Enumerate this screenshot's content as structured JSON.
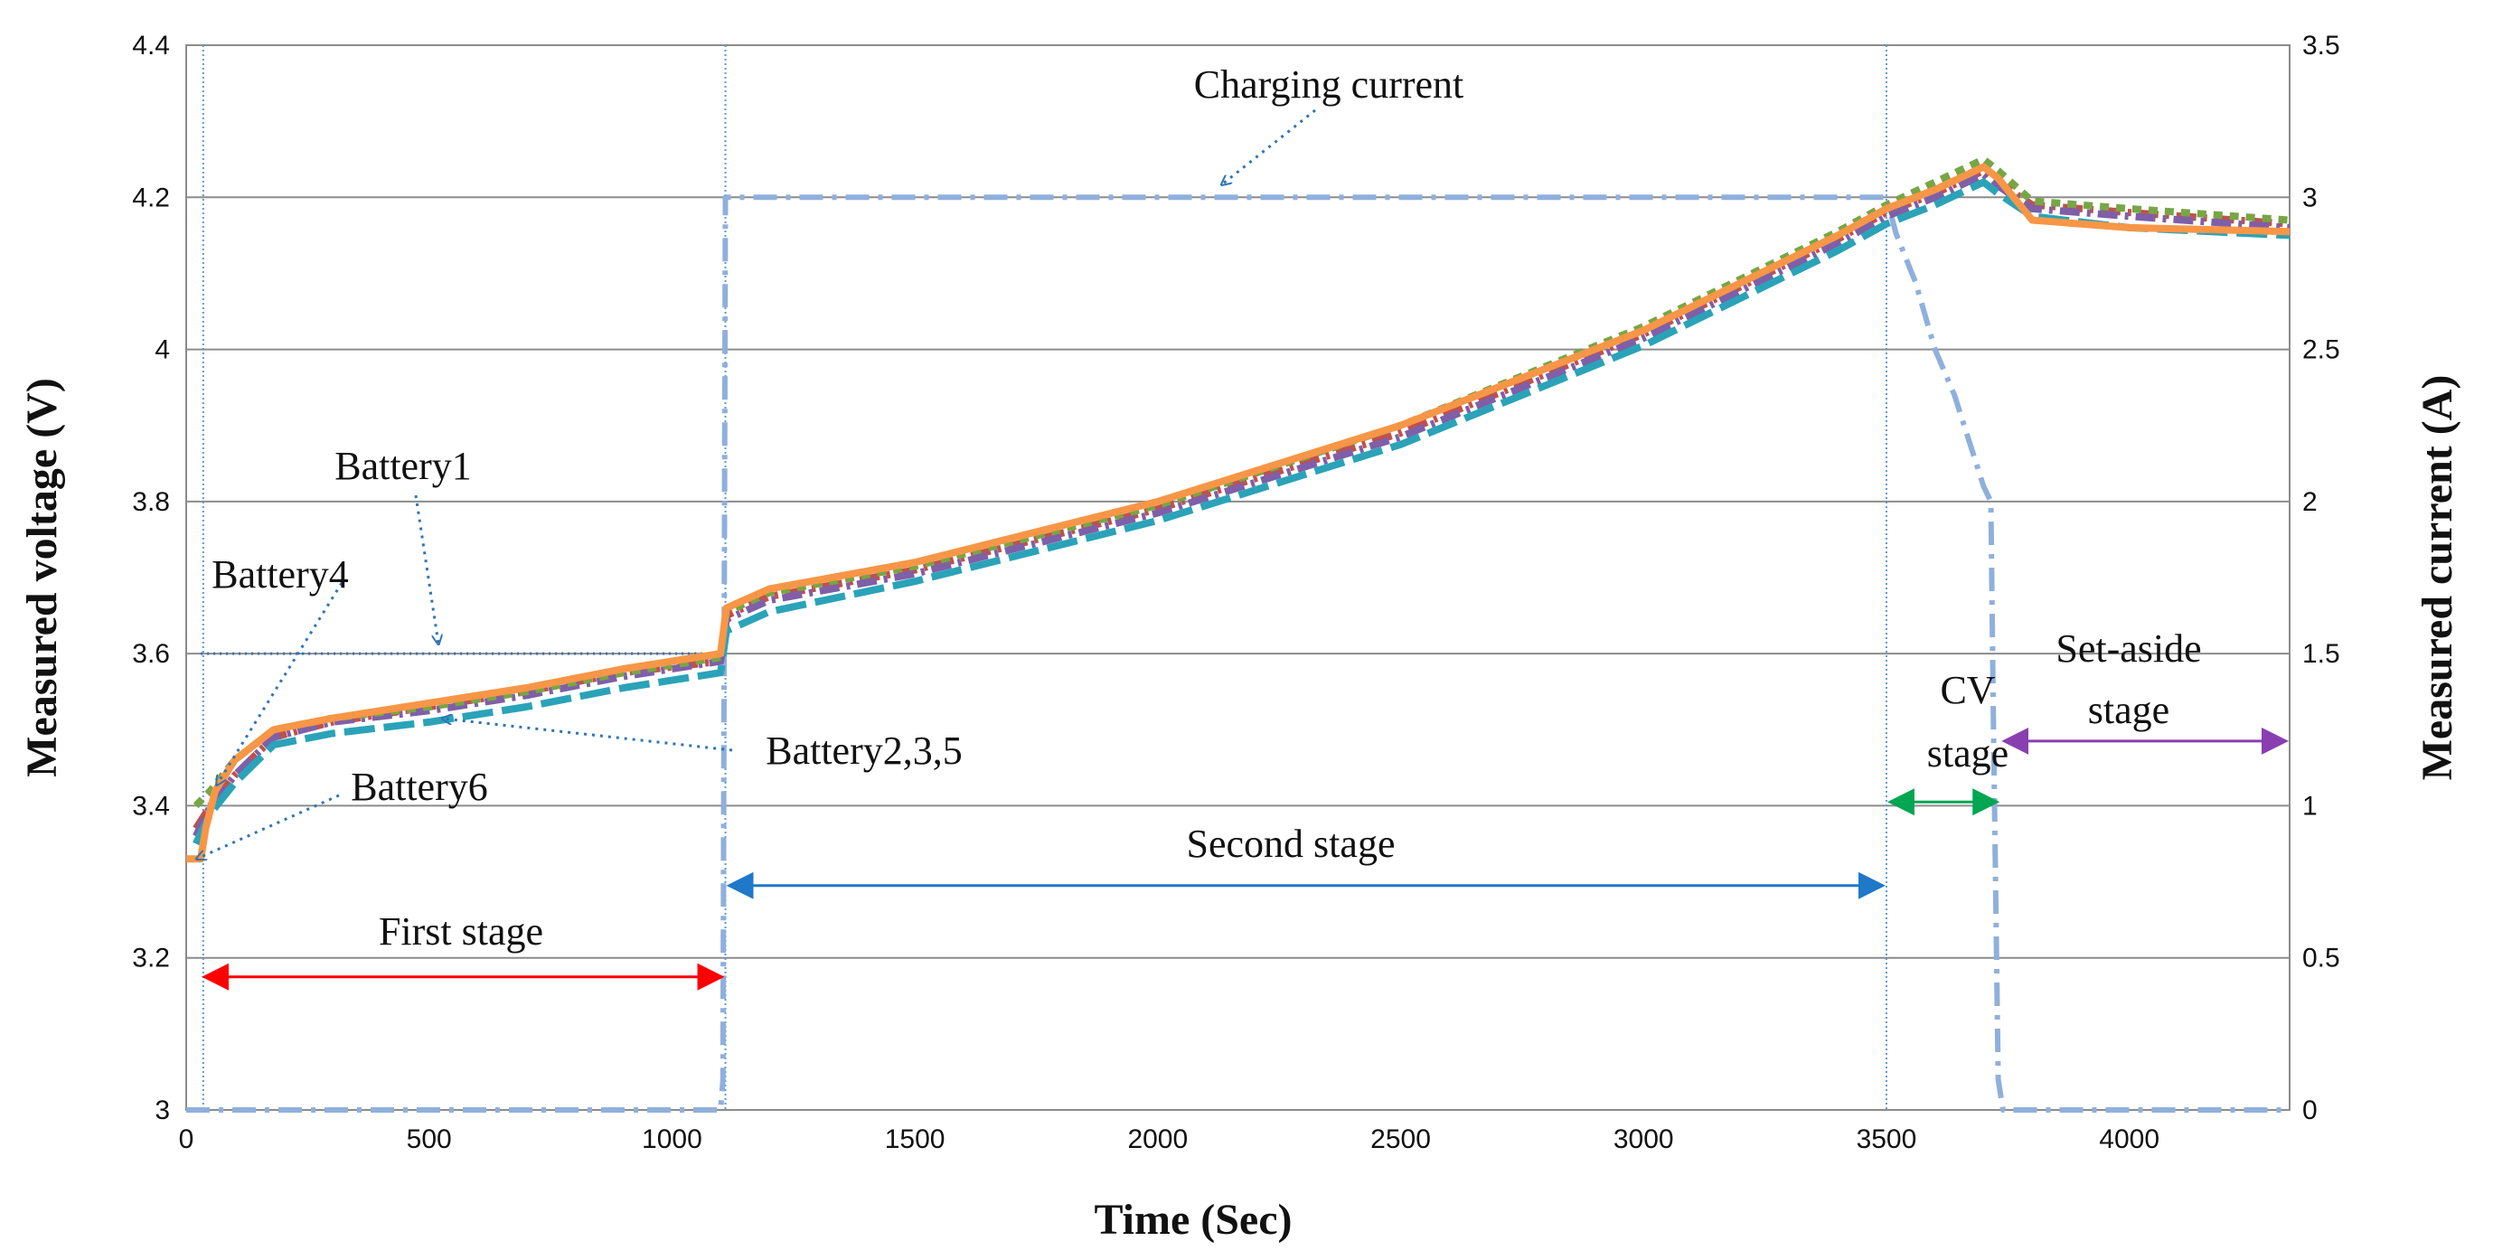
{
  "chart_data": {
    "type": "line",
    "title": "",
    "xlabel": "Time (Sec)",
    "ylabel": "Measured voltage (V)",
    "y2label": "Measured current (A)",
    "xlim": [
      0,
      4330
    ],
    "ylim": [
      3.0,
      4.4
    ],
    "y2lim": [
      0,
      3.5
    ],
    "xticks": [
      "0",
      "500",
      "1000",
      "1500",
      "2000",
      "2500",
      "3000",
      "3500",
      "4000"
    ],
    "yticks": [
      "3",
      "3.2",
      "3.4",
      "3.6",
      "3.8",
      "4",
      "4.2",
      "4.4"
    ],
    "y2ticks": [
      "0",
      "0.5",
      "1",
      "1.5",
      "2",
      "2.5",
      "3",
      "3.5"
    ],
    "grid": true,
    "stage_boundaries_x": [
      35,
      1110,
      3500
    ],
    "series": [
      {
        "name": "Battery1",
        "axis": "left",
        "color": "#2e6fb5",
        "style": "dotted-thin",
        "x": [
          30,
          200,
          500,
          800,
          1090,
          1100
        ],
        "y": [
          3.6,
          3.6,
          3.6,
          3.6,
          3.6,
          3.6
        ]
      },
      {
        "name": "Battery2",
        "axis": "left",
        "color": "#c0504d",
        "style": "dashdot",
        "x": [
          20,
          50,
          100,
          180,
          300,
          500,
          700,
          900,
          1100,
          1112,
          1200,
          1500,
          2000,
          2500,
          3000,
          3400,
          3500,
          3600,
          3700,
          3730,
          3800,
          4000,
          4330
        ],
        "y": [
          3.37,
          3.4,
          3.44,
          3.49,
          3.51,
          3.53,
          3.55,
          3.575,
          3.59,
          3.65,
          3.675,
          3.71,
          3.79,
          3.89,
          4.02,
          4.145,
          4.18,
          4.205,
          4.235,
          4.22,
          4.19,
          4.18,
          4.165
        ]
      },
      {
        "name": "Battery3",
        "axis": "left",
        "color": "#7f5fa8",
        "style": "dashdot",
        "x": [
          20,
          50,
          100,
          180,
          300,
          500,
          700,
          900,
          1100,
          1112,
          1200,
          1500,
          2000,
          2500,
          3000,
          3400,
          3500,
          3600,
          3700,
          3730,
          3800,
          4000,
          4330
        ],
        "y": [
          3.36,
          3.4,
          3.44,
          3.49,
          3.51,
          3.525,
          3.545,
          3.57,
          3.59,
          3.645,
          3.67,
          3.705,
          3.785,
          3.885,
          4.015,
          4.14,
          4.175,
          4.2,
          4.23,
          4.215,
          4.185,
          4.175,
          4.16
        ]
      },
      {
        "name": "Battery4",
        "axis": "left",
        "color": "#77a645",
        "style": "dashed",
        "x": [
          20,
          50,
          100,
          180,
          300,
          500,
          700,
          900,
          1100,
          1112,
          1200,
          1500,
          2000,
          2500,
          3000,
          3400,
          3500,
          3600,
          3700,
          3730,
          3800,
          4000,
          4330
        ],
        "y": [
          3.4,
          3.42,
          3.46,
          3.5,
          3.515,
          3.53,
          3.55,
          3.575,
          3.595,
          3.655,
          3.68,
          3.715,
          3.795,
          3.9,
          4.03,
          4.155,
          4.19,
          4.22,
          4.25,
          4.235,
          4.195,
          4.185,
          4.17
        ]
      },
      {
        "name": "Battery5",
        "axis": "left",
        "color": "#2aa3b8",
        "style": "longdash",
        "x": [
          20,
          50,
          100,
          180,
          300,
          500,
          700,
          900,
          1100,
          1112,
          1200,
          1500,
          2000,
          2500,
          3000,
          3400,
          3500,
          3600,
          3700,
          3730,
          3800,
          4000,
          4330
        ],
        "y": [
          3.35,
          3.39,
          3.43,
          3.48,
          3.495,
          3.51,
          3.53,
          3.555,
          3.575,
          3.63,
          3.655,
          3.695,
          3.775,
          3.875,
          4.005,
          4.13,
          4.165,
          4.19,
          4.22,
          4.205,
          4.175,
          4.16,
          4.15
        ]
      },
      {
        "name": "Battery6",
        "axis": "left",
        "color": "#f79646",
        "style": "solid",
        "x": [
          0,
          30,
          40,
          60,
          100,
          180,
          300,
          500,
          700,
          900,
          1100,
          1112,
          1200,
          1500,
          2000,
          2500,
          3000,
          3400,
          3500,
          3600,
          3700,
          3730,
          3800,
          4000,
          4330
        ],
        "y": [
          3.33,
          3.33,
          3.37,
          3.42,
          3.46,
          3.5,
          3.515,
          3.535,
          3.555,
          3.58,
          3.6,
          3.66,
          3.685,
          3.72,
          3.8,
          3.9,
          4.025,
          4.15,
          4.185,
          4.21,
          4.24,
          4.225,
          4.17,
          4.16,
          4.155
        ]
      },
      {
        "name": "Charging current",
        "axis": "right",
        "color": "#8fb0dc",
        "style": "dashdot-thick",
        "x": [
          0,
          1100,
          1105,
          1110,
          1120,
          2000,
          3000,
          3450,
          3500,
          3520,
          3560,
          3600,
          3640,
          3680,
          3700,
          3715,
          3720,
          3730,
          3740,
          4000,
          4330
        ],
        "y": [
          0,
          0,
          0.1,
          3.0,
          3.0,
          3.0,
          3.0,
          3.0,
          3.0,
          2.88,
          2.72,
          2.5,
          2.35,
          2.15,
          2.05,
          2.0,
          1.3,
          0.1,
          0,
          0,
          0
        ]
      }
    ],
    "annotations": {
      "charging_current": "Charging current",
      "battery1": "Battery1",
      "battery4": "Battery4",
      "battery6": "Battery6",
      "battery235": "Battery2,3,5",
      "first_stage": "First stage",
      "second_stage": "Second stage",
      "cv_stage_line1": "CV",
      "cv_stage_line2": "stage",
      "setaside_line1": "Set-aside",
      "setaside_line2": "stage"
    },
    "stage_arrows": [
      {
        "name": "first-stage",
        "from_x": 30,
        "to_x": 1110,
        "y": 3.175,
        "color": "#ff0000"
      },
      {
        "name": "second-stage",
        "from_x": 1110,
        "to_x": 3500,
        "y": 3.295,
        "color": "#1f78c8"
      },
      {
        "name": "cv-stage",
        "from_x": 3500,
        "to_x": 3735,
        "y": 3.405,
        "color": "#00a651"
      },
      {
        "name": "setaside-stage",
        "from_x": 3735,
        "to_x": 4330,
        "y": 3.485,
        "color": "#8a3fb0"
      }
    ]
  }
}
